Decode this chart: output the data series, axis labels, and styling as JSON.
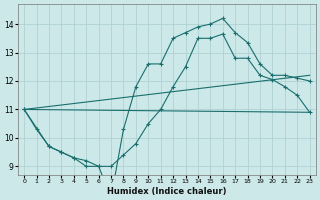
{
  "xlabel": "Humidex (Indice chaleur)",
  "bg_color": "#cce8e8",
  "line_color": "#1a6e6e",
  "grid_color": "#aacece",
  "xlim": [
    -0.5,
    23.5
  ],
  "ylim": [
    8.7,
    14.7
  ],
  "yticks": [
    9,
    10,
    11,
    12,
    13,
    14
  ],
  "xticks": [
    0,
    1,
    2,
    3,
    4,
    5,
    6,
    7,
    8,
    9,
    10,
    11,
    12,
    13,
    14,
    15,
    16,
    17,
    18,
    19,
    20,
    21,
    22,
    23
  ],
  "curve1_x": [
    0,
    1,
    2,
    3,
    4,
    5,
    6,
    7,
    8,
    9,
    10,
    11,
    12,
    13,
    14,
    15,
    16,
    17,
    18,
    19,
    20,
    21,
    22,
    23
  ],
  "curve1_y": [
    11.0,
    10.3,
    9.7,
    9.5,
    9.3,
    9.2,
    9.0,
    9.0,
    9.4,
    9.8,
    10.5,
    11.0,
    11.8,
    12.5,
    13.5,
    13.5,
    13.65,
    12.8,
    12.8,
    12.2,
    12.05,
    11.8,
    11.5,
    10.9
  ],
  "curve2_x": [
    0,
    2,
    3,
    4,
    5,
    6,
    7,
    8,
    9,
    10,
    11,
    12,
    13,
    14,
    15,
    16,
    17,
    18,
    19,
    20,
    21,
    22,
    23
  ],
  "curve2_y": [
    11.0,
    9.7,
    9.5,
    9.3,
    9.0,
    9.0,
    7.9,
    10.3,
    11.8,
    12.6,
    12.6,
    13.5,
    13.7,
    13.9,
    14.0,
    14.2,
    13.7,
    13.35,
    12.6,
    12.2,
    12.2,
    12.1,
    12.0
  ],
  "line1_x": [
    0,
    23
  ],
  "line1_y": [
    11.0,
    10.9
  ],
  "line2_x": [
    0,
    23
  ],
  "line2_y": [
    11.0,
    12.2
  ]
}
